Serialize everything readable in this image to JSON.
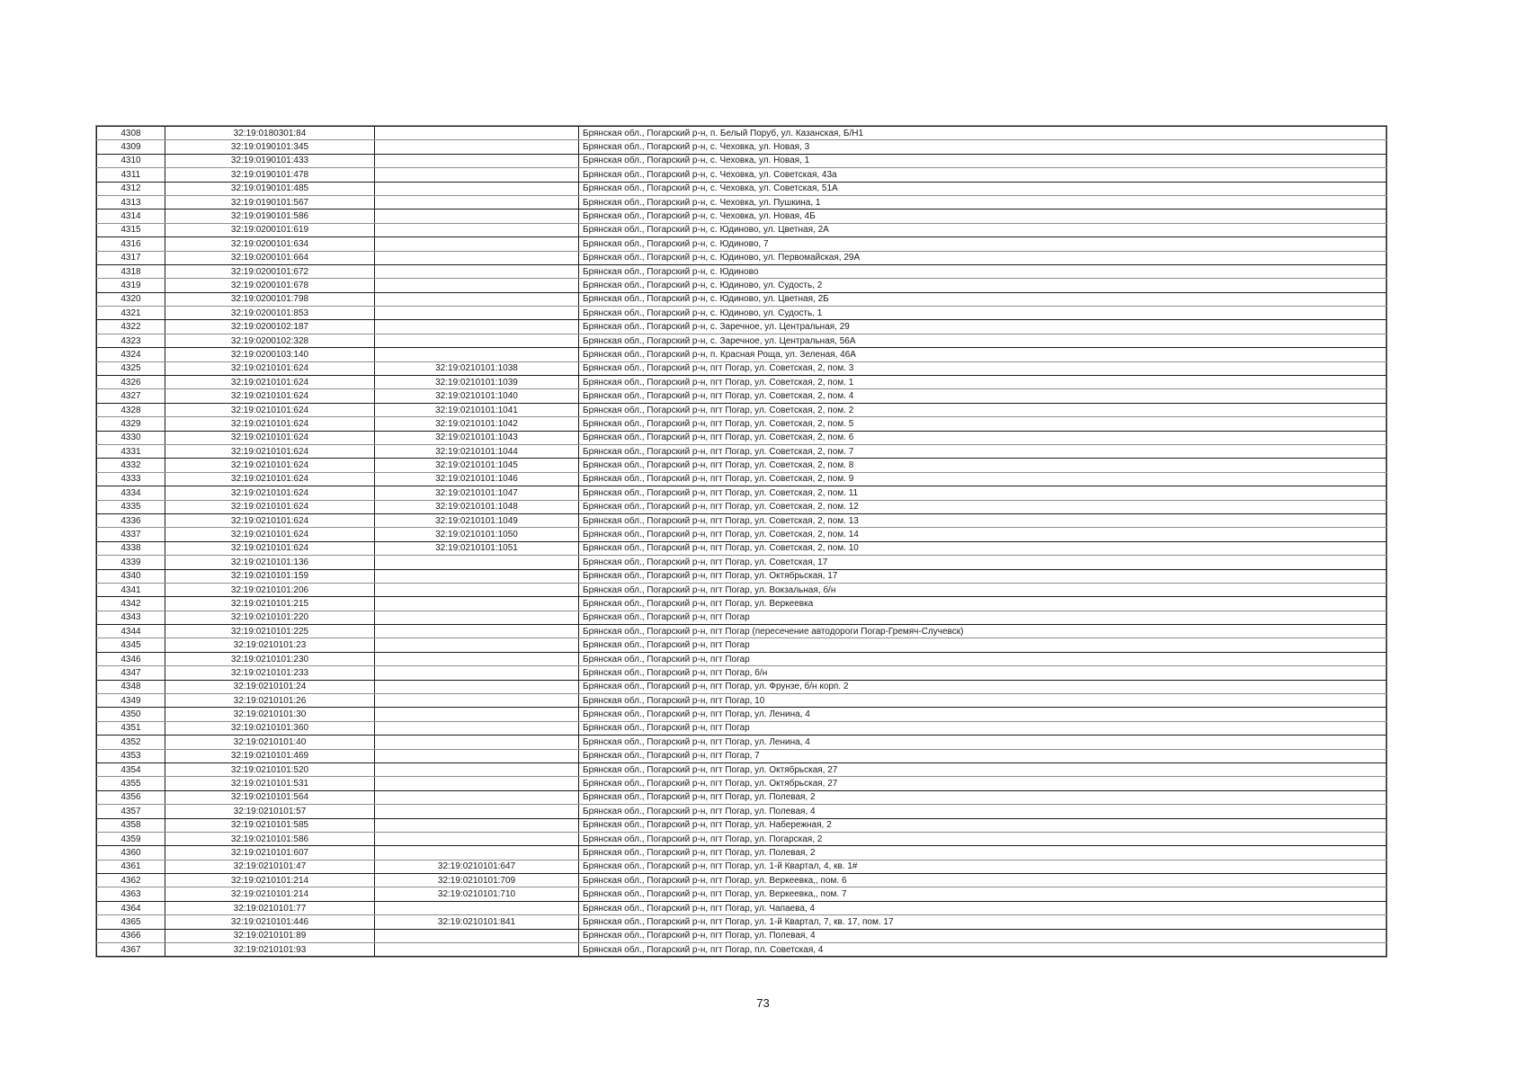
{
  "page": {
    "number": "73"
  },
  "table": {
    "rows": [
      [
        "4308",
        "32:19:0180301:84",
        "",
        "Брянская обл., Погарский р-н, п. Белый Поруб, ул. Казанская, Б/Н1"
      ],
      [
        "4309",
        "32:19:0190101:345",
        "",
        "Брянская обл., Погарский р-н, с. Чеховка, ул. Новая, 3"
      ],
      [
        "4310",
        "32:19:0190101:433",
        "",
        "Брянская обл., Погарский р-н, с. Чеховка, ул. Новая, 1"
      ],
      [
        "4311",
        "32:19:0190101:478",
        "",
        "Брянская обл., Погарский р-н, с. Чеховка, ул. Советская, 43а"
      ],
      [
        "4312",
        "32:19:0190101:485",
        "",
        "Брянская обл., Погарский р-н, с. Чеховка, ул. Советская, 51А"
      ],
      [
        "4313",
        "32:19:0190101:567",
        "",
        "Брянская обл., Погарский р-н, с. Чеховка, ул. Пушкина, 1"
      ],
      [
        "4314",
        "32:19:0190101:586",
        "",
        "Брянская обл., Погарский р-н, с. Чеховка, ул. Новая, 4Б"
      ],
      [
        "4315",
        "32:19:0200101:619",
        "",
        "Брянская обл., Погарский р-н, с. Юдиново, ул. Цветная, 2А"
      ],
      [
        "4316",
        "32:19:0200101:634",
        "",
        "Брянская обл., Погарский р-н, с. Юдиново, 7"
      ],
      [
        "4317",
        "32:19:0200101:664",
        "",
        "Брянская обл., Погарский р-н, с. Юдиново, ул. Первомайская, 29А"
      ],
      [
        "4318",
        "32:19:0200101:672",
        "",
        "Брянская обл., Погарский р-н, с. Юдиново"
      ],
      [
        "4319",
        "32:19:0200101:678",
        "",
        "Брянская обл., Погарский р-н, с. Юдиново, ул. Судость, 2"
      ],
      [
        "4320",
        "32:19:0200101:798",
        "",
        "Брянская обл., Погарский р-н, с. Юдиново, ул. Цветная, 2Б"
      ],
      [
        "4321",
        "32:19:0200101:853",
        "",
        "Брянская обл., Погарский р-н, с. Юдиново, ул. Судость, 1"
      ],
      [
        "4322",
        "32:19:0200102:187",
        "",
        "Брянская обл., Погарский р-н, с. Заречное, ул. Центральная, 29"
      ],
      [
        "4323",
        "32:19:0200102:328",
        "",
        "Брянская обл., Погарский р-н, с. Заречное, ул. Центральная, 56А"
      ],
      [
        "4324",
        "32:19:0200103:140",
        "",
        "Брянская обл., Погарский р-н, п. Красная Роща, ул. Зеленая, 46А"
      ],
      [
        "4325",
        "32:19:0210101:624",
        "32:19:0210101:1038",
        "Брянская обл., Погарский р-н, пгт Погар, ул. Советская, 2, пом. 3"
      ],
      [
        "4326",
        "32:19:0210101:624",
        "32:19:0210101:1039",
        "Брянская обл., Погарский р-н, пгт Погар, ул. Советская, 2, пом. 1"
      ],
      [
        "4327",
        "32:19:0210101:624",
        "32:19:0210101:1040",
        "Брянская обл., Погарский р-н, пгт Погар, ул. Советская, 2, пом. 4"
      ],
      [
        "4328",
        "32:19:0210101:624",
        "32:19:0210101:1041",
        "Брянская обл., Погарский р-н, пгт Погар, ул. Советская, 2, пом. 2"
      ],
      [
        "4329",
        "32:19:0210101:624",
        "32:19:0210101:1042",
        "Брянская обл., Погарский р-н, пгт Погар, ул. Советская, 2, пом. 5"
      ],
      [
        "4330",
        "32:19:0210101:624",
        "32:19:0210101:1043",
        "Брянская обл., Погарский р-н, пгт Погар, ул. Советская, 2, пом. 6"
      ],
      [
        "4331",
        "32:19:0210101:624",
        "32:19:0210101:1044",
        "Брянская обл., Погарский р-н, пгт Погар, ул. Советская, 2, пом. 7"
      ],
      [
        "4332",
        "32:19:0210101:624",
        "32:19:0210101:1045",
        "Брянская обл., Погарский р-н, пгт Погар, ул. Советская, 2, пом. 8"
      ],
      [
        "4333",
        "32:19:0210101:624",
        "32:19:0210101:1046",
        "Брянская обл., Погарский р-н, пгт Погар, ул. Советская, 2, пом. 9"
      ],
      [
        "4334",
        "32:19:0210101:624",
        "32:19:0210101:1047",
        "Брянская обл., Погарский р-н, пгт Погар, ул. Советская, 2, пом. 11"
      ],
      [
        "4335",
        "32:19:0210101:624",
        "32:19:0210101:1048",
        "Брянская обл., Погарский р-н, пгт Погар, ул. Советская, 2, пом. 12"
      ],
      [
        "4336",
        "32:19:0210101:624",
        "32:19:0210101:1049",
        "Брянская обл., Погарский р-н, пгт Погар, ул. Советская, 2, пом. 13"
      ],
      [
        "4337",
        "32:19:0210101:624",
        "32:19:0210101:1050",
        "Брянская обл., Погарский р-н, пгт Погар, ул. Советская, 2, пом. 14"
      ],
      [
        "4338",
        "32:19:0210101:624",
        "32:19:0210101:1051",
        "Брянская обл., Погарский р-н, пгт Погар, ул. Советская, 2, пом. 10"
      ],
      [
        "4339",
        "32:19:0210101:136",
        "",
        "Брянская обл., Погарский р-н, пгт Погар, ул. Советская, 17"
      ],
      [
        "4340",
        "32:19:0210101:159",
        "",
        "Брянская обл., Погарский р-н, пгт Погар, ул. Октябрьская, 17"
      ],
      [
        "4341",
        "32:19:0210101:206",
        "",
        "Брянская обл., Погарский р-н, пгт Погар, ул. Вокзальная, б/н"
      ],
      [
        "4342",
        "32:19:0210101:215",
        "",
        "Брянская обл., Погарский р-н, пгт Погар, ул. Веркеевка"
      ],
      [
        "4343",
        "32:19:0210101:220",
        "",
        "Брянская обл., Погарский р-н, пгт Погар"
      ],
      [
        "4344",
        "32:19:0210101:225",
        "",
        "Брянская обл., Погарский р-н, пгт Погар (пересечение автодороги Погар-Гремяч-Случевск)"
      ],
      [
        "4345",
        "32:19:0210101:23",
        "",
        "Брянская обл., Погарский р-н, пгт Погар"
      ],
      [
        "4346",
        "32:19:0210101:230",
        "",
        "Брянская обл., Погарский р-н, пгт Погар"
      ],
      [
        "4347",
        "32:19:0210101:233",
        "",
        "Брянская обл., Погарский р-н, пгт Погар, б/н"
      ],
      [
        "4348",
        "32:19:0210101:24",
        "",
        "Брянская обл., Погарский р-н, пгт Погар, ул. Фрунзе, б/н корп. 2"
      ],
      [
        "4349",
        "32:19:0210101:26",
        "",
        "Брянская обл., Погарский р-н, пгт Погар, 10"
      ],
      [
        "4350",
        "32:19:0210101:30",
        "",
        "Брянская обл., Погарский р-н, пгт Погар, ул. Ленина, 4"
      ],
      [
        "4351",
        "32:19:0210101:360",
        "",
        "Брянская обл., Погарский р-н, пгт Погар"
      ],
      [
        "4352",
        "32:19:0210101:40",
        "",
        "Брянская обл., Погарский р-н, пгт Погар, ул. Ленина, 4"
      ],
      [
        "4353",
        "32:19:0210101:469",
        "",
        "Брянская обл., Погарский р-н, пгт Погар, 7"
      ],
      [
        "4354",
        "32:19:0210101:520",
        "",
        "Брянская обл., Погарский р-н, пгт Погар, ул. Октябрьская, 27"
      ],
      [
        "4355",
        "32:19:0210101:531",
        "",
        "Брянская обл., Погарский р-н, пгт Погар, ул. Октябрьская, 27"
      ],
      [
        "4356",
        "32:19:0210101:564",
        "",
        "Брянская обл., Погарский р-н, пгт Погар, ул. Полевая, 2"
      ],
      [
        "4357",
        "32:19:0210101:57",
        "",
        "Брянская обл., Погарский р-н, пгт Погар, ул. Полевая, 4"
      ],
      [
        "4358",
        "32:19:0210101:585",
        "",
        "Брянская обл., Погарский р-н, пгт Погар, ул. Набережная, 2"
      ],
      [
        "4359",
        "32:19:0210101:586",
        "",
        "Брянская обл., Погарский р-н, пгт Погар, ул. Погарская, 2"
      ],
      [
        "4360",
        "32:19:0210101:607",
        "",
        "Брянская обл., Погарский р-н, пгт Погар, ул. Полевая, 2"
      ],
      [
        "4361",
        "32:19:0210101:47",
        "32:19:0210101:647",
        "Брянская обл., Погарский р-н, пгт Погар, ул. 1-й Квартал, 4, кв. 1#"
      ],
      [
        "4362",
        "32:19:0210101:214",
        "32:19:0210101:709",
        "Брянская обл., Погарский р-н, пгт Погар, ул. Веркеевка,, пом. 6"
      ],
      [
        "4363",
        "32:19:0210101:214",
        "32:19:0210101:710",
        "Брянская обл., Погарский р-н, пгт Погар, ул. Веркеевка,, пом. 7"
      ],
      [
        "4364",
        "32:19:0210101:77",
        "",
        "Брянская обл., Погарский р-н, пгт Погар, ул. Чапаева, 4"
      ],
      [
        "4365",
        "32:19:0210101:446",
        "32:19:0210101:841",
        "Брянская обл., Погарский р-н, пгт Погар, ул. 1-й Квартал, 7, кв. 17, пом. 17"
      ],
      [
        "4366",
        "32:19:0210101:89",
        "",
        "Брянская обл., Погарский р-н, пгт Погар, ул. Полевая, 4"
      ],
      [
        "4367",
        "32:19:0210101:93",
        "",
        "Брянская обл., Погарский р-н, пгт Погар, пл. Советская, 4"
      ]
    ]
  }
}
